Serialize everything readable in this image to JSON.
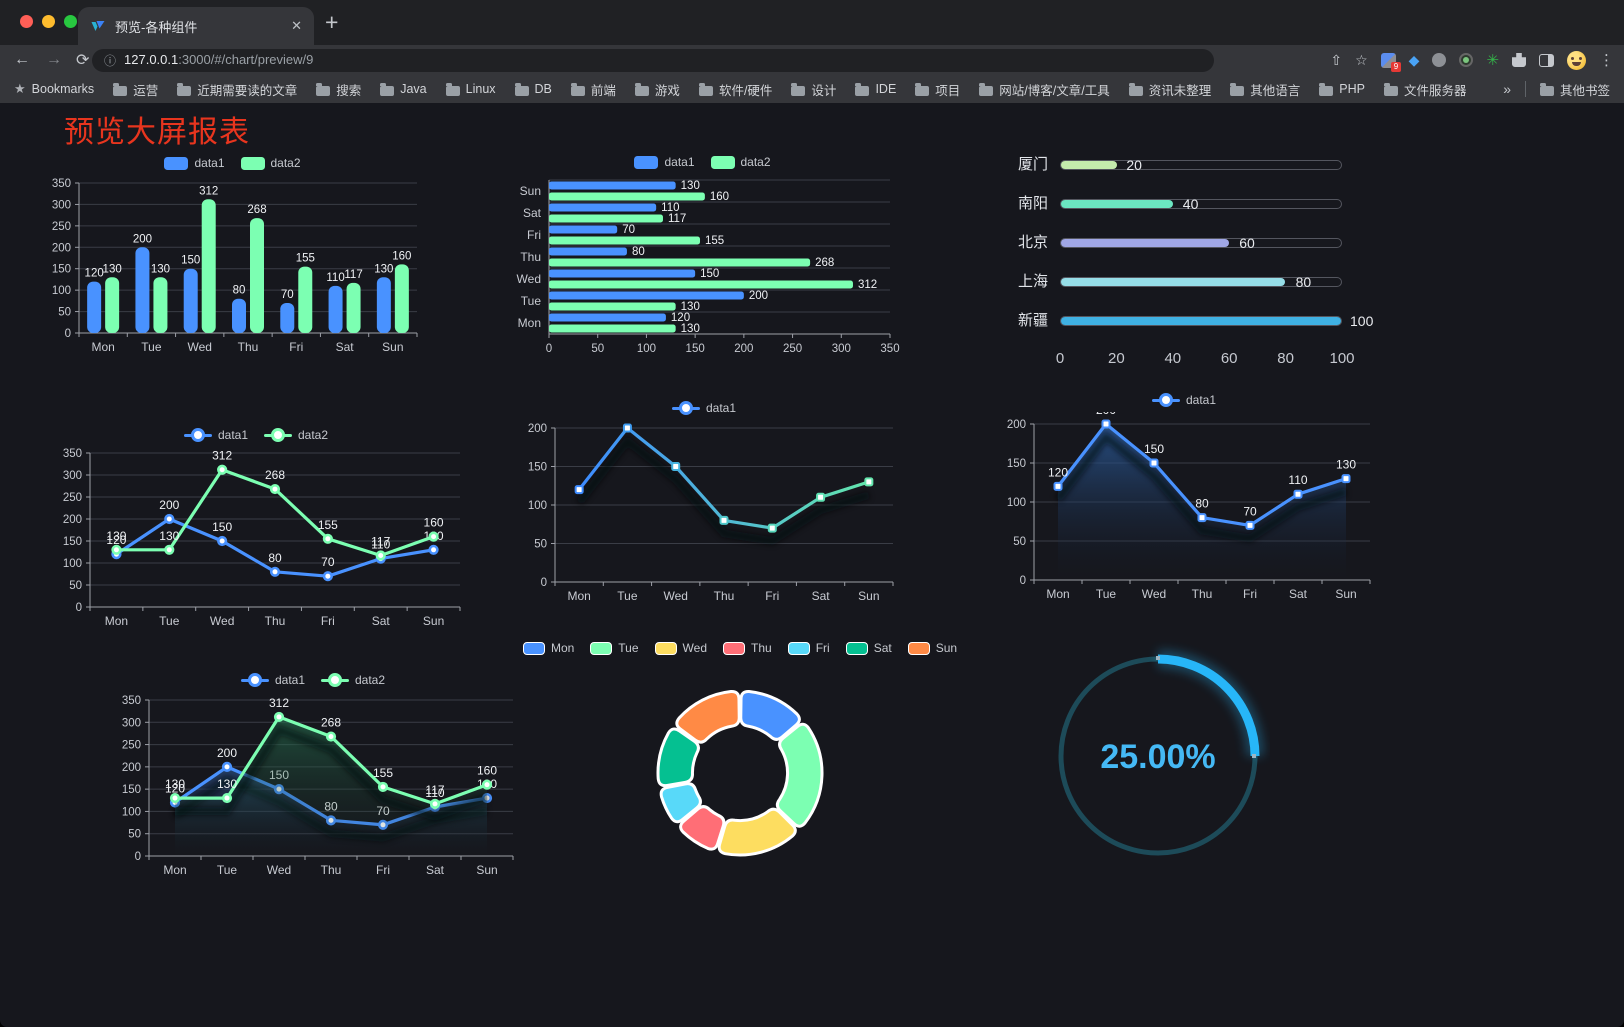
{
  "browser": {
    "traffic_lights": [
      "#ff5f57",
      "#febc2e",
      "#28c840"
    ],
    "tab_title": "预览-各种组件",
    "close_glyph": "✕",
    "new_tab_glyph": "+",
    "nav_back": "←",
    "nav_forward": "→",
    "nav_reload": "⟳",
    "nav_home": "⌂",
    "url_info_glyph": "ⓘ",
    "url_host": "127.0.0.1",
    "url_rest": ":3000/#/chart/preview/9",
    "share_glyph": "⇧",
    "star_glyph": "☆",
    "extension_badge": "9",
    "menu_glyph": "⋮",
    "bookmarks_root_label": "Bookmarks",
    "bookmarks": [
      "运营",
      "近期需要读的文章",
      "搜索",
      "Java",
      "Linux",
      "DB",
      "前端",
      "游戏",
      "软件/硬件",
      "设计",
      "IDE",
      "项目",
      "网站/博客/文章/工具",
      "资讯未整理",
      "其他语言",
      "PHP",
      "文件服务器"
    ],
    "overflow_glyph": "»",
    "other_bookmarks_label": "其他书签"
  },
  "page": {
    "title": "预览大屏报表",
    "title_color": "#e8351e",
    "background": "#16171d"
  },
  "palette": {
    "data1": "#4992ff",
    "data2": "#7cffb2"
  },
  "chart_data": [
    {
      "id": "bar-grouped",
      "type": "bar",
      "categories": [
        "Mon",
        "Tue",
        "Wed",
        "Thu",
        "Fri",
        "Sat",
        "Sun"
      ],
      "series": [
        {
          "name": "data1",
          "color": "#4992ff",
          "values": [
            120,
            200,
            150,
            80,
            70,
            110,
            130
          ]
        },
        {
          "name": "data2",
          "color": "#7cffb2",
          "values": [
            130,
            130,
            312,
            268,
            155,
            117,
            160
          ]
        }
      ],
      "ylim": [
        0,
        350
      ],
      "ytick_step": 50,
      "legend_position": "top",
      "grid": true,
      "show_labels": true
    },
    {
      "id": "bar-horizontal",
      "type": "bar",
      "orientation": "horizontal",
      "categories": [
        "Mon",
        "Tue",
        "Wed",
        "Thu",
        "Fri",
        "Sat",
        "Sun"
      ],
      "display_top_to_bottom": [
        "Sun",
        "Sat",
        "Fri",
        "Thu",
        "Wed",
        "Tue",
        "Mon"
      ],
      "series": [
        {
          "name": "data1",
          "color": "#4992ff",
          "values": [
            120,
            200,
            150,
            80,
            70,
            110,
            130
          ]
        },
        {
          "name": "data2",
          "color": "#7cffb2",
          "values": [
            130,
            130,
            312,
            268,
            155,
            117,
            160
          ]
        }
      ],
      "xlim": [
        0,
        350
      ],
      "xtick_step": 50,
      "legend_position": "top",
      "grid": true,
      "show_labels": true
    },
    {
      "id": "progress-bars",
      "type": "bar",
      "orientation": "horizontal-progress",
      "items": [
        {
          "label": "厦门",
          "value": 20,
          "color": "#c4ebad"
        },
        {
          "label": "南阳",
          "value": 40,
          "color": "#6be6c1"
        },
        {
          "label": "北京",
          "value": 60,
          "color": "#a0a7e6"
        },
        {
          "label": "上海",
          "value": 80,
          "color": "#96dee8"
        },
        {
          "label": "新疆",
          "value": 100,
          "color": "#3fb1e3"
        }
      ],
      "xlim": [
        0,
        100
      ],
      "xticks": [
        0,
        20,
        40,
        60,
        80,
        100
      ]
    },
    {
      "id": "line-two-series",
      "type": "line",
      "categories": [
        "Mon",
        "Tue",
        "Wed",
        "Thu",
        "Fri",
        "Sat",
        "Sun"
      ],
      "series": [
        {
          "name": "data1",
          "color": "#4992ff",
          "values": [
            120,
            200,
            150,
            80,
            70,
            110,
            130
          ]
        },
        {
          "name": "data2",
          "color": "#7cffb2",
          "values": [
            130,
            130,
            312,
            268,
            155,
            117,
            160
          ]
        }
      ],
      "ylim": [
        0,
        350
      ],
      "ytick_step": 50,
      "legend_position": "top",
      "marker": "circle",
      "show_labels": true
    },
    {
      "id": "line-gradient",
      "type": "line",
      "categories": [
        "Mon",
        "Tue",
        "Wed",
        "Thu",
        "Fri",
        "Sat",
        "Sun"
      ],
      "series": [
        {
          "name": "data1",
          "gradient": [
            "#3d8bff",
            "#63e6ac"
          ],
          "color": "#4992ff",
          "values": [
            120,
            200,
            150,
            80,
            70,
            110,
            130
          ]
        }
      ],
      "ylim": [
        0,
        200
      ],
      "ytick_step": 50,
      "legend_position": "top",
      "marker": "square",
      "show_labels": false,
      "shadow": true
    },
    {
      "id": "line-area-single",
      "type": "area",
      "categories": [
        "Mon",
        "Tue",
        "Wed",
        "Thu",
        "Fri",
        "Sat",
        "Sun"
      ],
      "series": [
        {
          "name": "data1",
          "color": "#4992ff",
          "area_gradient": [
            "rgba(44,92,156,0.85)",
            "rgba(20,30,48,0)"
          ],
          "values": [
            120,
            200,
            150,
            80,
            70,
            110,
            130
          ]
        }
      ],
      "ylim": [
        0,
        200
      ],
      "ytick_step": 50,
      "legend_position": "top",
      "marker": "square",
      "show_labels": true,
      "shadow": true
    },
    {
      "id": "line-two-areas",
      "type": "area",
      "categories": [
        "Mon",
        "Tue",
        "Wed",
        "Thu",
        "Fri",
        "Sat",
        "Sun"
      ],
      "series": [
        {
          "name": "data1",
          "color": "#4992ff",
          "area_gradient": [
            "rgba(50,100,170,0.55)",
            "rgba(20,30,48,0)"
          ],
          "values": [
            120,
            200,
            150,
            80,
            70,
            110,
            130
          ]
        },
        {
          "name": "data2",
          "color": "#7cffb2",
          "area_gradient": [
            "rgba(40,120,85,0.6)",
            "rgba(20,40,32,0)"
          ],
          "values": [
            130,
            130,
            312,
            268,
            155,
            117,
            160
          ]
        }
      ],
      "ylim": [
        0,
        350
      ],
      "ytick_step": 50,
      "legend_position": "top",
      "marker": "circle",
      "show_labels": true,
      "shadow": true
    },
    {
      "id": "donut",
      "type": "pie",
      "inner_radius_ratio": 0.58,
      "border_color": "#ffffff",
      "slices": [
        {
          "label": "Mon",
          "value": 120,
          "color": "#4992ff"
        },
        {
          "label": "Tue",
          "value": 200,
          "color": "#7cffb2"
        },
        {
          "label": "Wed",
          "value": 150,
          "color": "#fddd60"
        },
        {
          "label": "Thu",
          "value": 80,
          "color": "#ff6e76"
        },
        {
          "label": "Fri",
          "value": 70,
          "color": "#58d9f9"
        },
        {
          "label": "Sat",
          "value": 110,
          "color": "#05c091"
        },
        {
          "label": "Sun",
          "value": 130,
          "color": "#ff8a45"
        }
      ],
      "legend_position": "top"
    },
    {
      "id": "gauge",
      "type": "gauge",
      "percent": 25,
      "value_label": "25.00%",
      "progress_color": "#27b6f8",
      "track_color": "#1d4b59",
      "text_color": "#45b9f5"
    }
  ]
}
